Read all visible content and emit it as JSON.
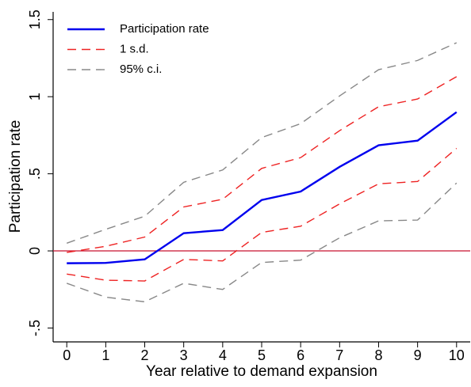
{
  "chart_data": {
    "type": "line",
    "x_label": "Year relative to demand expansion",
    "y_label": "Participation rate",
    "x": [
      0,
      1,
      2,
      3,
      4,
      5,
      6,
      7,
      8,
      9,
      10
    ],
    "xlim": [
      -0.35,
      10.35
    ],
    "xticks": [
      0,
      1,
      2,
      3,
      4,
      5,
      6,
      7,
      8,
      9,
      10
    ],
    "ylim": [
      -0.59,
      1.55
    ],
    "yticks": [
      {
        "value": -0.5,
        "label": "-.5"
      },
      0,
      {
        "value": 0.5,
        "label": ".5"
      },
      1,
      1.5
    ],
    "reference_line": {
      "y": 0,
      "color": "#c8102e"
    },
    "legend": "top-left",
    "series": [
      {
        "name": "Participation rate",
        "color": "#0000ee",
        "dashed": false,
        "values": [
          -0.08,
          -0.078,
          -0.055,
          0.115,
          0.135,
          0.33,
          0.385,
          0.545,
          0.685,
          0.715,
          0.9
        ]
      },
      {
        "name": "1 s.d.",
        "color": "#ee2222",
        "dashed": true,
        "upper": [
          -0.01,
          0.03,
          0.09,
          0.285,
          0.335,
          0.535,
          0.605,
          0.78,
          0.935,
          0.985,
          1.13
        ],
        "lower": [
          -0.15,
          -0.19,
          -0.195,
          -0.055,
          -0.065,
          0.12,
          0.16,
          0.305,
          0.435,
          0.45,
          0.665
        ]
      },
      {
        "name": "95% c.i.",
        "color": "#888888",
        "dashed": true,
        "upper": [
          0.05,
          0.14,
          0.225,
          0.445,
          0.525,
          0.735,
          0.825,
          1.005,
          1.175,
          1.235,
          1.35
        ],
        "lower": [
          -0.21,
          -0.3,
          -0.33,
          -0.21,
          -0.25,
          -0.075,
          -0.06,
          0.085,
          0.195,
          0.2,
          0.44
        ]
      }
    ]
  }
}
